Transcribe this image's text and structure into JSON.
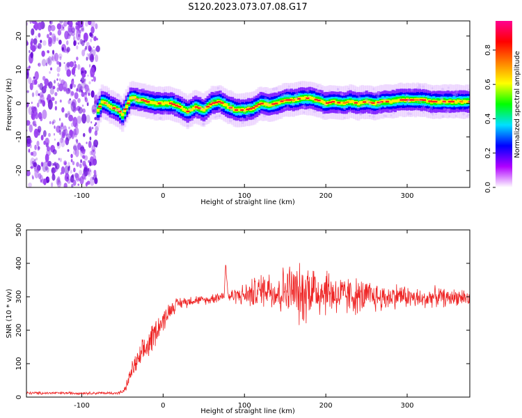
{
  "title": "S120.2023.073.07.08.G17",
  "colorbar": {
    "label": "Normalized spectral amplitude",
    "ticks": [
      0.0,
      0.2,
      0.4,
      0.6,
      0.8
    ],
    "tick_labels": [
      "0.0",
      "0.2",
      "0.4",
      "0.6",
      "0.8"
    ],
    "range": [
      0,
      0.97
    ],
    "colormap": [
      "#ffffff",
      "#b000ff",
      "#0000ff",
      "#00e0ff",
      "#00ff00",
      "#ffff00",
      "#ff8000",
      "#ff0000",
      "#ff0090"
    ]
  },
  "chart_data": [
    {
      "type": "heatmap",
      "xlabel": "Height of straight line (km)",
      "ylabel": "Frequency (Hz)",
      "xlim": [
        -168,
        377
      ],
      "ylim": [
        -25,
        24.5
      ],
      "xticks": [
        -100,
        0,
        100,
        200,
        300
      ],
      "xtick_labels": [
        "-100",
        "0",
        "100",
        "200",
        "300"
      ],
      "yticks": [
        -20,
        -10,
        0,
        10,
        20
      ],
      "ytick_labels": [
        "-20",
        "-10",
        "0",
        "10",
        "20"
      ],
      "noise_region_end_km": -80,
      "ridge": {
        "x": [
          -80,
          -75,
          -70,
          -65,
          -60,
          -55,
          -50,
          -45,
          -40,
          -35,
          -30,
          -25,
          -20,
          -10,
          0,
          10,
          20,
          30,
          40,
          50,
          60,
          70,
          80,
          90,
          100,
          110,
          120,
          130,
          140,
          150,
          160,
          170,
          180,
          190,
          200,
          210,
          220,
          230,
          240,
          250,
          260,
          270,
          280,
          290,
          300,
          310,
          320,
          330,
          340,
          350,
          360,
          370,
          377
        ],
        "freq": [
          -2,
          0.5,
          0,
          -1,
          -1.5,
          -2,
          -3.5,
          -1,
          1.5,
          1.5,
          1,
          1,
          0.5,
          0,
          0,
          0,
          -1,
          -2.5,
          -1,
          -2,
          0,
          0.5,
          -1,
          -2,
          -2,
          -1.5,
          0,
          -0.5,
          0,
          1,
          1,
          1.5,
          1.5,
          1,
          0,
          0.5,
          0,
          0.5,
          0,
          0.5,
          0,
          0.5,
          0.5,
          1,
          1,
          1,
          1,
          0.5,
          0.5,
          0.5,
          0.5,
          0.5,
          0.5
        ]
      }
    },
    {
      "type": "line",
      "xlabel": "Height of straight line (km)",
      "ylabel": "SNR (10 * v/v)",
      "xlim": [
        -168,
        377
      ],
      "ylim": [
        0,
        500
      ],
      "xticks": [
        -100,
        0,
        100,
        200,
        300
      ],
      "xtick_labels": [
        "-100",
        "0",
        "100",
        "200",
        "300"
      ],
      "yticks": [
        0,
        100,
        200,
        300,
        400,
        500
      ],
      "ytick_labels": [
        "0",
        "100",
        "200",
        "300",
        "400",
        "500"
      ],
      "color": "#ee2222",
      "series": [
        {
          "x": [
            -168,
            -150,
            -130,
            -110,
            -90,
            -70,
            -55,
            -48,
            -44,
            -40,
            -35,
            -30,
            -25,
            -20,
            -15,
            -10,
            -5,
            0,
            5,
            10,
            15,
            20,
            25,
            30,
            35,
            40,
            45,
            50,
            55,
            60,
            65,
            70,
            75,
            77,
            80,
            90,
            100,
            110,
            120,
            130,
            140,
            150,
            160,
            170,
            180,
            190,
            200,
            210,
            220,
            230,
            240,
            250,
            260,
            270,
            280,
            290,
            300,
            310,
            320,
            330,
            340,
            350,
            360,
            370,
            377
          ],
          "y": [
            12,
            12,
            12,
            12,
            12,
            12,
            12,
            18,
            40,
            70,
            95,
            110,
            130,
            150,
            170,
            195,
            215,
            225,
            250,
            265,
            275,
            280,
            285,
            285,
            290,
            290,
            290,
            290,
            290,
            295,
            300,
            300,
            305,
            400,
            300,
            305,
            305,
            310,
            320,
            330,
            310,
            320,
            320,
            300,
            330,
            315,
            320,
            310,
            300,
            305,
            300,
            300,
            300,
            295,
            300,
            305,
            300,
            295,
            290,
            300,
            300,
            295,
            300,
            300,
            290
          ],
          "spread": [
            5,
            5,
            5,
            5,
            5,
            5,
            5,
            8,
            20,
            30,
            40,
            40,
            50,
            55,
            55,
            50,
            45,
            40,
            35,
            30,
            25,
            22,
            20,
            20,
            18,
            18,
            15,
            15,
            15,
            20,
            20,
            20,
            20,
            10,
            25,
            30,
            40,
            55,
            60,
            70,
            80,
            90,
            100,
            110,
            110,
            100,
            90,
            80,
            75,
            70,
            65,
            60,
            55,
            50,
            45,
            45,
            40,
            40,
            35,
            35,
            35,
            30,
            30,
            30,
            30
          ]
        }
      ]
    }
  ]
}
